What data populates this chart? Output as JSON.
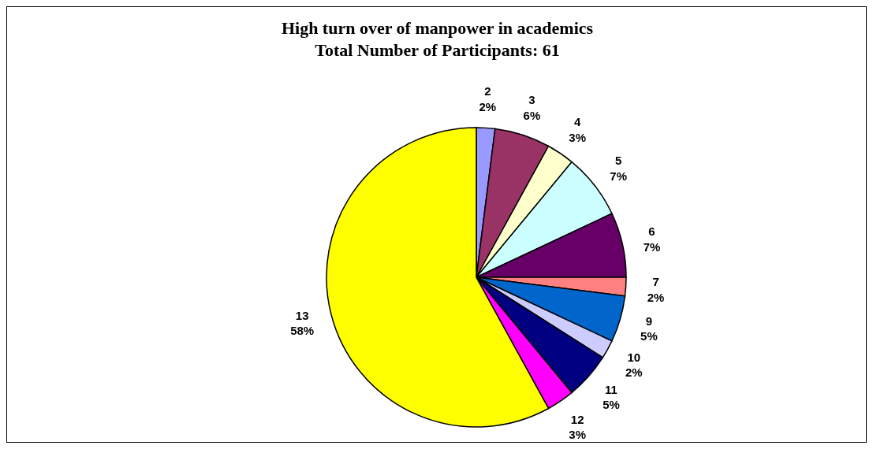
{
  "chart_data": {
    "type": "pie",
    "title": "High turn over of manpower in academics",
    "subtitle": "Total Number of Participants: 61",
    "categories": [
      "2",
      "3",
      "4",
      "5",
      "6",
      "7",
      "9",
      "10",
      "11",
      "12",
      "13"
    ],
    "values": [
      2,
      6,
      3,
      7,
      7,
      2,
      5,
      2,
      5,
      3,
      58
    ],
    "value_labels": [
      "2%",
      "6%",
      "3%",
      "7%",
      "7%",
      "2%",
      "5%",
      "2%",
      "5%",
      "3%",
      "58%"
    ],
    "colors": [
      "#9999ff",
      "#993366",
      "#ffffcc",
      "#ccffff",
      "#660066",
      "#ff8080",
      "#0066cc",
      "#ccccff",
      "#000080",
      "#ff00ff",
      "#ffff00"
    ],
    "legend": false
  }
}
